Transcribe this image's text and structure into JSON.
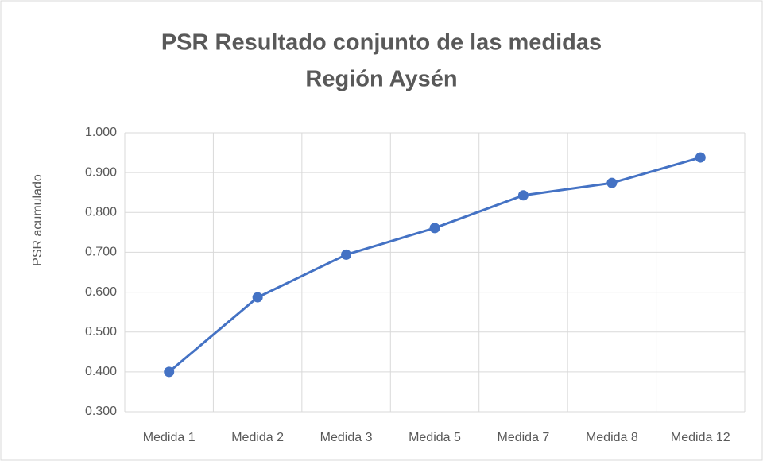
{
  "chart_data": {
    "type": "line",
    "title": [
      "PSR Resultado conjunto de las medidas",
      "Región Aysén"
    ],
    "y_label": "PSR acumulado",
    "categories": [
      "Medida 1",
      "Medida 2",
      "Medida 3",
      "Medida 5",
      "Medida 7",
      "Medida 8",
      "Medida 12"
    ],
    "series": [
      {
        "name": "PSR acumulado",
        "color": "#4472c4",
        "values": [
          0.4,
          0.587,
          0.694,
          0.761,
          0.843,
          0.874,
          0.938
        ]
      }
    ],
    "ylim": [
      0.3,
      1.0
    ],
    "yticks": [
      {
        "value": 0.3,
        "label": "0.300"
      },
      {
        "value": 0.4,
        "label": "0.400"
      },
      {
        "value": 0.5,
        "label": "0.500"
      },
      {
        "value": 0.6,
        "label": "0.600"
      },
      {
        "value": 0.7,
        "label": "0.700"
      },
      {
        "value": 0.8,
        "label": "0.800"
      },
      {
        "value": 0.9,
        "label": "0.900"
      },
      {
        "value": 1.0,
        "label": "1.000"
      }
    ],
    "grid": true
  }
}
